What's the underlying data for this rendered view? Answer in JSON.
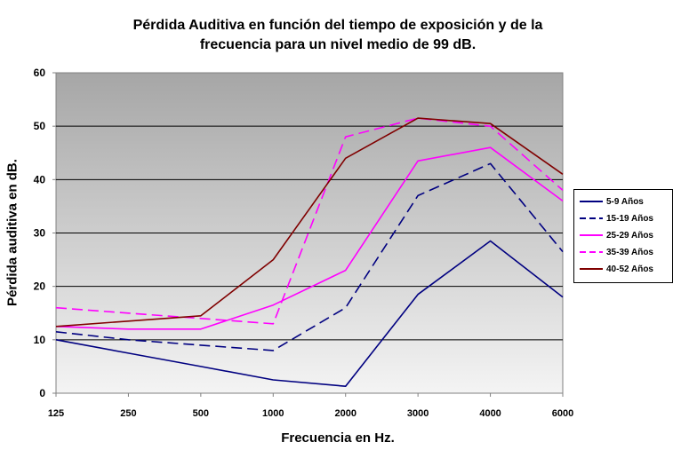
{
  "chart_data": {
    "type": "line",
    "title_line1": "Pérdida Auditiva en función del tiempo de exposición y de la",
    "title_line2": "frecuencia para un nivel medio de 99 dB.",
    "xlabel": "Frecuencia en Hz.",
    "ylabel": "Pérdida auditiva en dB.",
    "categories": [
      "125",
      "250",
      "500",
      "1000",
      "2000",
      "3000",
      "4000",
      "6000"
    ],
    "ylim": [
      0,
      60
    ],
    "yticks": [
      "0",
      "10",
      "20",
      "30",
      "40",
      "50",
      "60"
    ],
    "grid": true,
    "legend_position": "right",
    "background_gradient": [
      "#a6a6a6",
      "#f4f4f4"
    ],
    "series": [
      {
        "name": "5-9 Años",
        "color": "#000080",
        "dash": false,
        "values": [
          10,
          7.5,
          5,
          2.5,
          1.3,
          18.5,
          28.5,
          18
        ]
      },
      {
        "name": "15-19 Años",
        "color": "#000080",
        "dash": true,
        "values": [
          11.5,
          10,
          9,
          8,
          16,
          37,
          43,
          26.5
        ]
      },
      {
        "name": "25-29 Años",
        "color": "#ff00ff",
        "dash": false,
        "values": [
          12.5,
          12,
          12,
          16.5,
          23,
          43.5,
          46,
          36
        ]
      },
      {
        "name": "35-39 Años",
        "color": "#ff00ff",
        "dash": true,
        "values": [
          16,
          15,
          14,
          13,
          48,
          51.5,
          50,
          38
        ]
      },
      {
        "name": "40-52 Años",
        "color": "#800000",
        "dash": false,
        "values": [
          12.5,
          13.5,
          14.5,
          25,
          44,
          51.5,
          50.5,
          41
        ]
      }
    ]
  }
}
